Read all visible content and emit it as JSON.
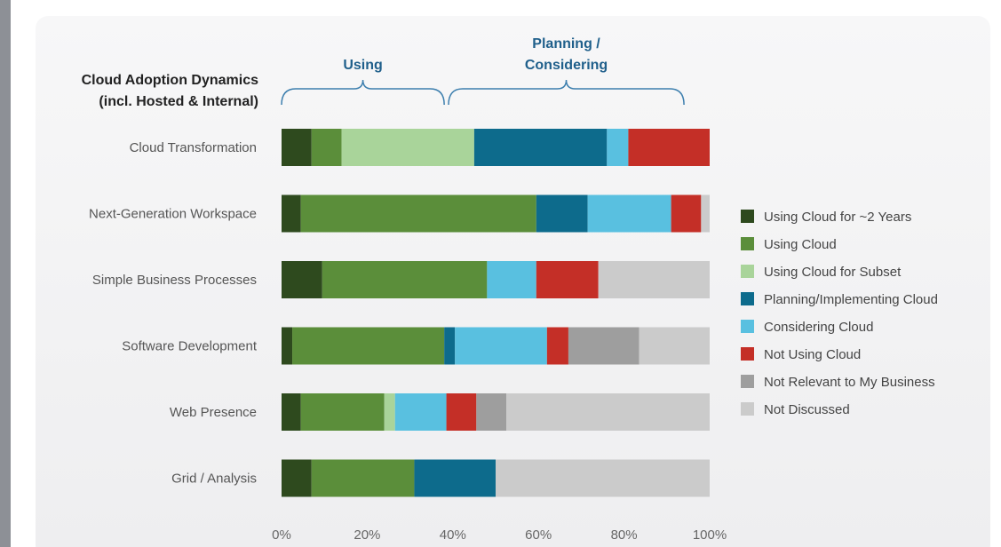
{
  "chart_data": {
    "type": "bar",
    "orientation": "horizontal",
    "stacked": true,
    "title": [
      "Cloud Adoption Dynamics",
      "(incl. Hosted & Internal)"
    ],
    "brackets": [
      {
        "label": [
          "Using"
        ],
        "from": 0,
        "to": 38
      },
      {
        "label": [
          "Planning /",
          "Considering"
        ],
        "from": 39,
        "to": 94
      }
    ],
    "categories": [
      "Cloud Transformation",
      "Next-Generation Workspace",
      "Simple Business Processes",
      "Software Development",
      "Web Presence",
      "Grid / Analysis"
    ],
    "series": [
      {
        "name": "Using Cloud for ~2 Years",
        "color": "#2e4a1e",
        "values": [
          7,
          4.5,
          9.5,
          2.5,
          4.5,
          7
        ]
      },
      {
        "name": "Using Cloud",
        "color": "#5b8e3a",
        "values": [
          7,
          55,
          38.5,
          35.5,
          19.5,
          24
        ]
      },
      {
        "name": "Using Cloud for Subset",
        "color": "#a9d49a",
        "values": [
          31,
          0,
          0,
          0,
          2.5,
          0
        ]
      },
      {
        "name": "Planning/Implementing Cloud",
        "color": "#0d6b8c",
        "values": [
          31,
          12,
          0,
          2.5,
          0,
          19
        ]
      },
      {
        "name": "Considering Cloud",
        "color": "#59c0e0",
        "values": [
          5,
          19.5,
          11.5,
          21.5,
          12,
          0
        ]
      },
      {
        "name": "Not Using Cloud",
        "color": "#c42f27",
        "values": [
          19,
          7,
          14.5,
          5,
          7,
          0
        ]
      },
      {
        "name": "Not Relevant to My Business",
        "color": "#9e9e9e",
        "values": [
          0,
          0,
          0,
          16.5,
          7,
          0
        ]
      },
      {
        "name": "Not Discussed",
        "color": "#cbcbcb",
        "values": [
          0,
          2,
          26,
          16.5,
          47.5,
          50
        ]
      }
    ],
    "xlim": [
      0,
      100
    ],
    "xticks": [
      "0%",
      "20%",
      "40%",
      "60%",
      "80%",
      "100%"
    ],
    "grid": false,
    "legend": "right"
  }
}
